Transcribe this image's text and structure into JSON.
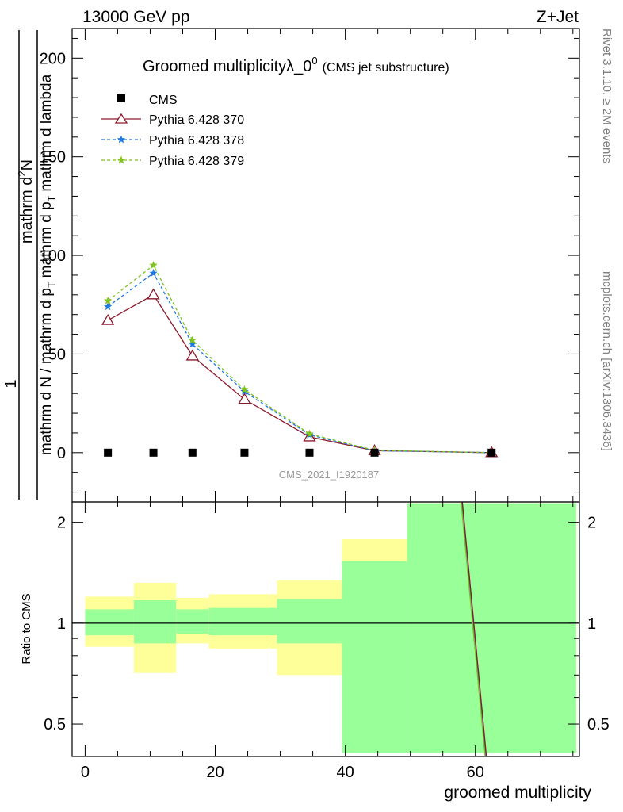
{
  "header": {
    "energy_label": "13000 GeV pp",
    "process_label": "Z+Jet"
  },
  "side_labels": {
    "rivet": "Rivet 3.1.10, ≥ 2M events",
    "mcplots": "mcplots.cern.ch [arXiv:1306.3436]"
  },
  "chart_data": [
    {
      "type": "line",
      "title": "Groomed multiplicityλ_0",
      "title_superscript": "0",
      "subtitle": "(CMS jet substructure)",
      "watermark": "CMS_2021_I1920187",
      "ylabel": {
        "prefix": "1",
        "numerator": "mathrm d",
        "numerator_superscript": "2",
        "numerator_end": "N",
        "denominator": "mathrm d N / mathrm d p",
        "denominator_sub1": "T",
        "denominator_mid": " mathrm d p",
        "denominator_sub2": "T",
        "denominator_end": " mathrm d lambda"
      },
      "xlim": [
        -2,
        76
      ],
      "ylim": [
        -25,
        215
      ],
      "yticks": [
        0,
        50,
        100,
        150,
        200
      ],
      "yticklabels": [
        "0",
        "50",
        "100",
        "150",
        "200"
      ],
      "legend_position": "top-left",
      "series": [
        {
          "name": "CMS",
          "color": "#000000",
          "marker": "square",
          "x": [
            3.5,
            10.5,
            16.5,
            24.5,
            34.5,
            44.5,
            62.5
          ],
          "y": [
            0,
            0,
            0,
            0,
            0,
            0,
            0
          ]
        },
        {
          "name": "Pythia 6.428 370",
          "color": "#8b1a2b",
          "marker": "triangle-open",
          "line": "solid",
          "x": [
            3.5,
            10.5,
            16.5,
            24.5,
            34.5,
            44.5,
            62.5
          ],
          "y": [
            67,
            80,
            49,
            27,
            8,
            1,
            0
          ]
        },
        {
          "name": "Pythia 6.428 378",
          "color": "#1e78e0",
          "marker": "star",
          "line": "dashed",
          "x": [
            3.5,
            10.5,
            16.5,
            24.5,
            34.5,
            44.5,
            62.5
          ],
          "y": [
            74,
            91,
            55,
            31,
            9,
            1,
            0
          ]
        },
        {
          "name": "Pythia 6.428 379",
          "color": "#7fc31c",
          "marker": "star",
          "line": "dashed",
          "x": [
            3.5,
            10.5,
            16.5,
            24.5,
            34.5,
            44.5,
            62.5
          ],
          "y": [
            77,
            95,
            57,
            32,
            9.5,
            1.2,
            0
          ]
        }
      ]
    },
    {
      "type": "area",
      "ylabel": "Ratio to CMS",
      "xlabel": "groomed multiplicity",
      "xlim": [
        -2,
        76
      ],
      "ylim": [
        0.4,
        2.3
      ],
      "xticks": [
        0,
        20,
        40,
        60
      ],
      "xticklabels": [
        "0",
        "20",
        "40",
        "60"
      ],
      "yticks": [
        0.5,
        1,
        2
      ],
      "yticklabels": [
        "0.5",
        "1",
        "2"
      ],
      "reference_line": 1,
      "bands": [
        {
          "x0": 0,
          "x1": 7.5,
          "inner": [
            0.92,
            1.1
          ],
          "outer": [
            0.85,
            1.2
          ]
        },
        {
          "x0": 7.5,
          "x1": 14,
          "inner": [
            0.87,
            1.17
          ],
          "outer": [
            0.71,
            1.32
          ]
        },
        {
          "x0": 14,
          "x1": 19,
          "inner": [
            0.93,
            1.1
          ],
          "outer": [
            0.87,
            1.19
          ]
        },
        {
          "x0": 19,
          "x1": 29.5,
          "inner": [
            0.92,
            1.11
          ],
          "outer": [
            0.84,
            1.22
          ]
        },
        {
          "x0": 29.5,
          "x1": 39.5,
          "inner": [
            0.87,
            1.18
          ],
          "outer": [
            0.7,
            1.34
          ]
        },
        {
          "x0": 39.5,
          "x1": 49.5,
          "inner": [
            0.41,
            1.53
          ],
          "outer": [
            0.41,
            1.78
          ]
        },
        {
          "x0": 49.5,
          "x1": 75.5,
          "inner": [
            0.41,
            2.28
          ],
          "outer": [
            0.41,
            2.28
          ]
        }
      ],
      "ratio_lines": [
        {
          "name": "Pythia 6.428 378",
          "color": "#1e78e0",
          "x": [
            57.9,
            61.6
          ],
          "y": [
            2.3,
            0.4
          ]
        },
        {
          "name": "Pythia 6.428 379",
          "color": "#7fc31c",
          "x": [
            57.8,
            61.5
          ],
          "y": [
            2.3,
            0.4
          ]
        },
        {
          "name": "Pythia 6.428 370",
          "color": "#8b1a2b",
          "x": [
            58.0,
            61.7
          ],
          "y": [
            2.3,
            0.4
          ]
        }
      ]
    }
  ],
  "colors": {
    "band_inner": "#99ff99",
    "band_outer": "#ffff99",
    "watermark": "#999999",
    "side_text": "#808080"
  }
}
